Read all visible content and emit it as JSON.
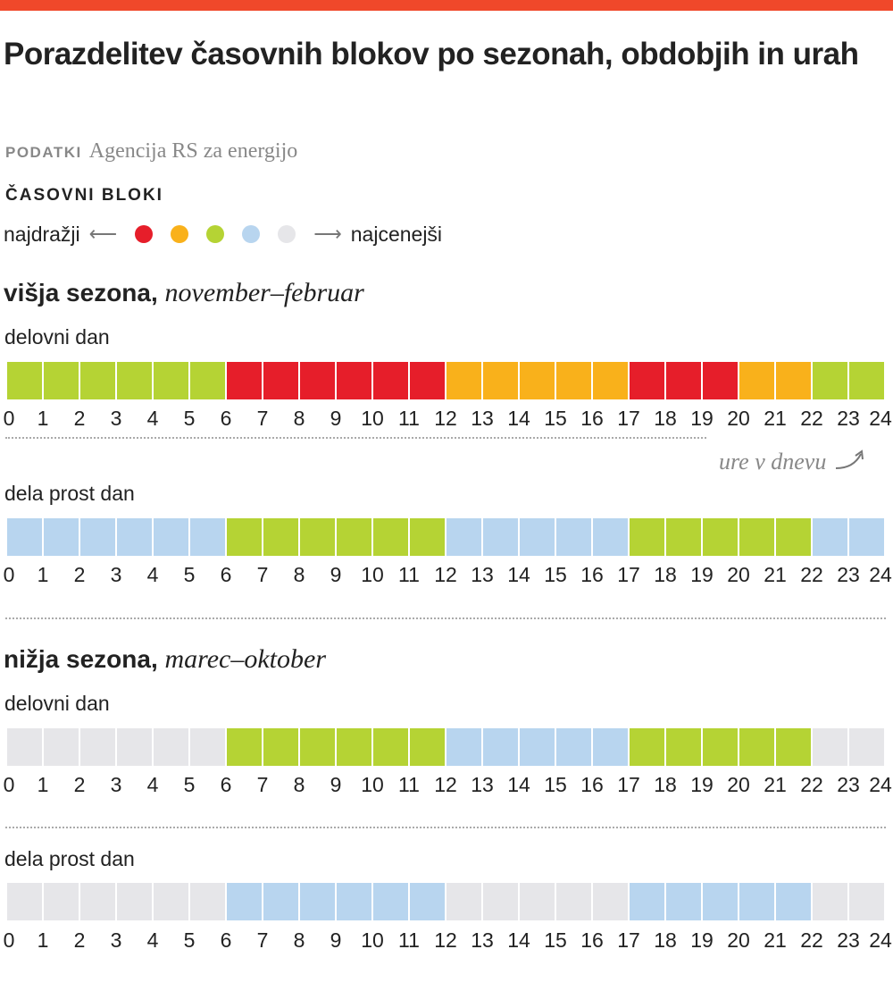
{
  "title": "Porazdelitev časovnih blokov po sezonah, obdobjih in urah",
  "source": {
    "label": "PODATKI",
    "text": "Agencija RS za energijo"
  },
  "legend": {
    "title": "ČASOVNI BLOKI",
    "left_label": "najdražji",
    "right_label": "najcenejši",
    "blocks": [
      {
        "block": 1,
        "color": "#e61e2a"
      },
      {
        "block": 2,
        "color": "#f9b11b"
      },
      {
        "block": 3,
        "color": "#b5d334"
      },
      {
        "block": 4,
        "color": "#b8d5ef"
      },
      {
        "block": 5,
        "color": "#e6e6e9"
      }
    ]
  },
  "hours_note": "ure v dnevu",
  "chart_data": {
    "type": "heatmap",
    "x": [
      0,
      1,
      2,
      3,
      4,
      5,
      6,
      7,
      8,
      9,
      10,
      11,
      12,
      13,
      14,
      15,
      16,
      17,
      18,
      19,
      20,
      21,
      22,
      23,
      24
    ],
    "seasons": [
      {
        "name": "višja sezona,",
        "months": "november–februar",
        "days": [
          {
            "label": "delovni dan",
            "blocks": [
              3,
              3,
              3,
              3,
              3,
              3,
              1,
              1,
              1,
              1,
              1,
              1,
              2,
              2,
              2,
              2,
              2,
              1,
              1,
              1,
              2,
              2,
              3,
              3
            ]
          },
          {
            "label": "dela prost dan",
            "blocks": [
              4,
              4,
              4,
              4,
              4,
              4,
              3,
              3,
              3,
              3,
              3,
              3,
              4,
              4,
              4,
              4,
              4,
              3,
              3,
              3,
              3,
              3,
              4,
              4
            ]
          }
        ]
      },
      {
        "name": "nižja sezona,",
        "months": "marec–oktober",
        "days": [
          {
            "label": "delovni dan",
            "blocks": [
              5,
              5,
              5,
              5,
              5,
              5,
              3,
              3,
              3,
              3,
              3,
              3,
              4,
              4,
              4,
              4,
              4,
              3,
              3,
              3,
              3,
              3,
              5,
              5
            ]
          },
          {
            "label": "dela prost dan",
            "blocks": [
              5,
              5,
              5,
              5,
              5,
              5,
              4,
              4,
              4,
              4,
              4,
              4,
              5,
              5,
              5,
              5,
              5,
              4,
              4,
              4,
              4,
              4,
              5,
              5
            ]
          }
        ]
      }
    ]
  }
}
